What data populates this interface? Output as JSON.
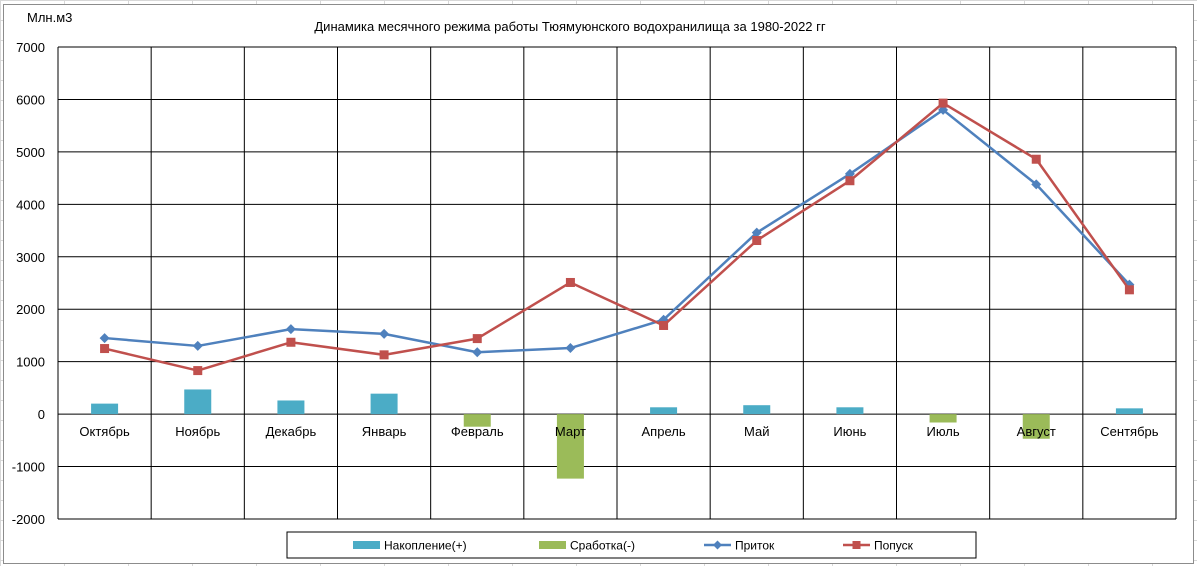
{
  "chart_data": {
    "type": "bar",
    "title": "Динамика месячного режима  работы Тюямуюнского водохранилища  за 1980-2022 гг",
    "ylabel": "Млн.м3",
    "xlabel": "",
    "ylim": [
      -2000,
      7000
    ],
    "yticks": [
      7000,
      6000,
      5000,
      4000,
      3000,
      2000,
      1000,
      0,
      -1000,
      -2000
    ],
    "categories": [
      "Октябрь",
      "Ноябрь",
      "Декабрь",
      "Январь",
      "Февраль",
      "Март",
      "Апрель",
      "Май",
      "Июнь",
      "Июль",
      "Август",
      "Сентябрь"
    ],
    "grid": true,
    "legend_position": "bottom",
    "series": [
      {
        "name": "Накопление(+)",
        "kind": "bar",
        "color": "#4bacc6",
        "values": [
          200,
          470,
          260,
          390,
          null,
          null,
          130,
          170,
          130,
          null,
          null,
          110
        ]
      },
      {
        "name": "Сработка(-)",
        "kind": "bar",
        "color": "#9bbb59",
        "values": [
          null,
          null,
          null,
          null,
          -240,
          -1230,
          null,
          null,
          null,
          -160,
          -470,
          null
        ]
      },
      {
        "name": "Приток",
        "kind": "line",
        "marker": "diamond",
        "color": "#4f81bd",
        "values": [
          1450,
          1300,
          1620,
          1530,
          1180,
          1260,
          1800,
          3460,
          4580,
          5800,
          4380,
          2470
        ]
      },
      {
        "name": "Попуск",
        "kind": "line",
        "marker": "square",
        "color": "#c0504d",
        "values": [
          1250,
          830,
          1370,
          1130,
          1440,
          2510,
          1690,
          3310,
          4450,
          5930,
          4860,
          2370
        ]
      }
    ]
  }
}
